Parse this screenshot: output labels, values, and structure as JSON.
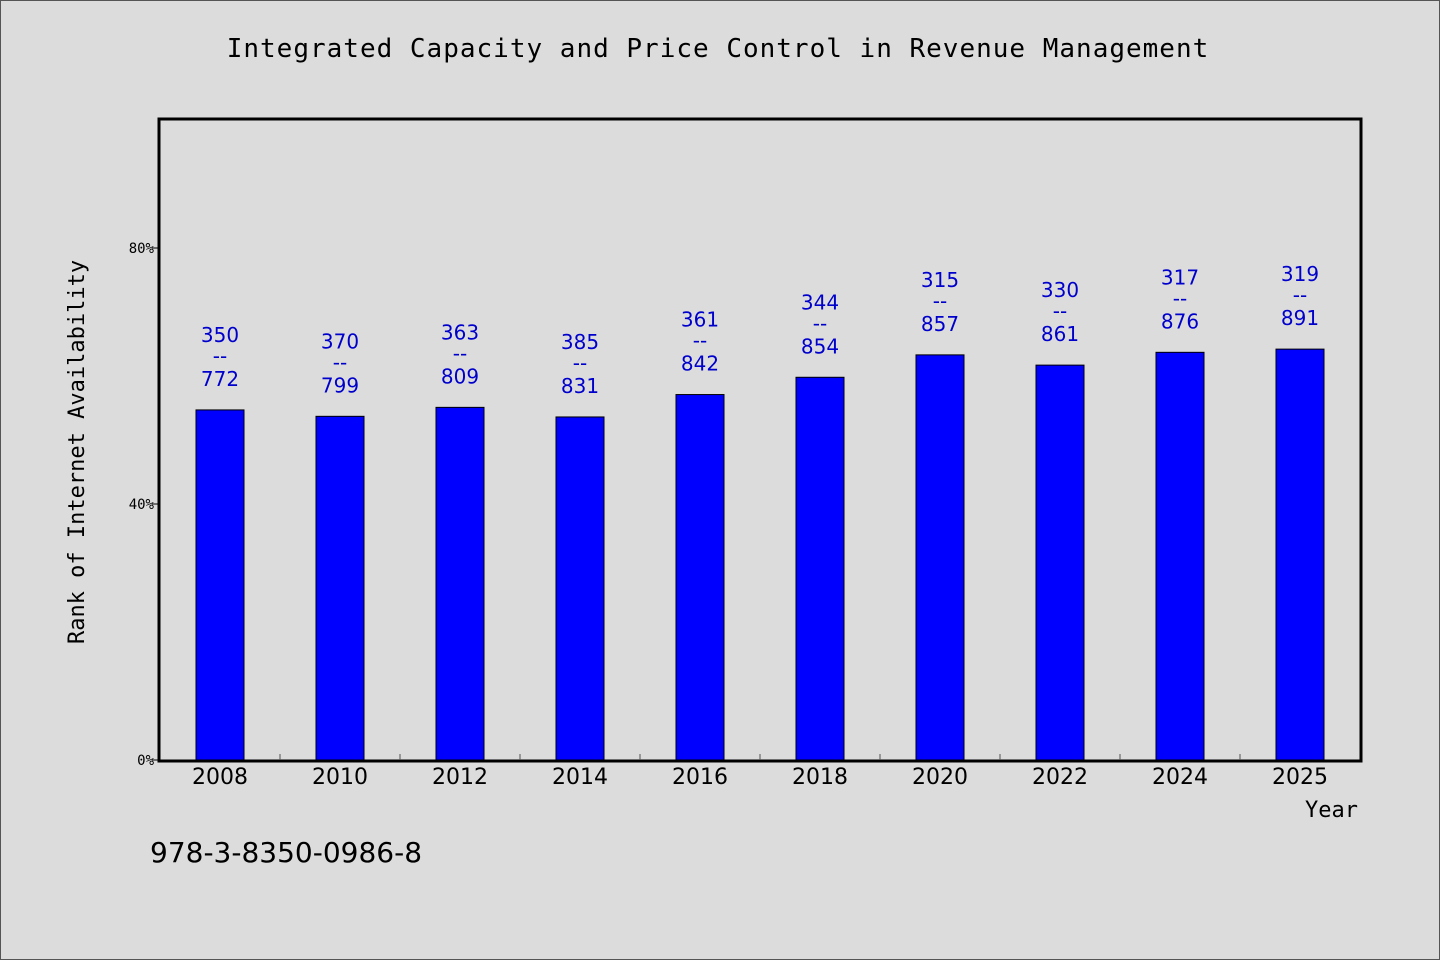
{
  "chart_data": {
    "type": "bar",
    "title": "Integrated Capacity and Price Control in Revenue Management",
    "xlabel": "Year",
    "ylabel": "Rank of Internet Availability",
    "ylim": [
      0,
      100
    ],
    "y_ticks": [
      {
        "value": 0,
        "label": "0%"
      },
      {
        "value": 40,
        "label": "40%"
      },
      {
        "value": 80,
        "label": "80%"
      }
    ],
    "categories": [
      "2008",
      "2010",
      "2012",
      "2014",
      "2016",
      "2018",
      "2020",
      "2022",
      "2024",
      "2025"
    ],
    "values": [
      54.7,
      53.7,
      55.1,
      53.6,
      57.1,
      59.8,
      63.3,
      61.7,
      63.7,
      64.2
    ],
    "label_top": [
      "350",
      "370",
      "363",
      "385",
      "361",
      "344",
      "315",
      "330",
      "317",
      "319"
    ],
    "label_separator": "--",
    "label_bottom": [
      "772",
      "799",
      "809",
      "831",
      "842",
      "854",
      "857",
      "861",
      "876",
      "891"
    ],
    "grid": false,
    "bar_color": "#0000ff",
    "label_color": "#0000cc"
  },
  "footer": {
    "isbn": "978-3-8350-0986-8"
  }
}
